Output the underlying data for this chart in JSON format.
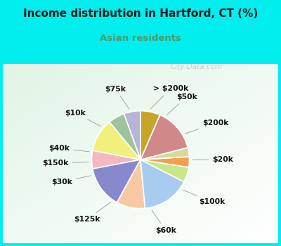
{
  "title": "Income distribution in Hartford, CT (%)",
  "subtitle": "Asian residents",
  "title_color": "#1a1a1a",
  "subtitle_color": "#4a9a6a",
  "title_bg_color": "#00EEEE",
  "chart_bg_color": "#d8efe8",
  "watermark": "City-Data.com",
  "labels": [
    "> $200k",
    "$50k",
    "$200k",
    "$20k",
    "$100k",
    "$60k",
    "$125k",
    "$30k",
    "$150k",
    "$40k",
    "$10k",
    "$75k"
  ],
  "sizes": [
    5.5,
    5.5,
    11.0,
    6.0,
    14.0,
    9.5,
    16.0,
    5.0,
    3.5,
    3.0,
    14.5,
    6.5
  ],
  "colors": [
    "#b8b4d8",
    "#9ec49e",
    "#f0f07a",
    "#f4b8c0",
    "#8888cc",
    "#f8c8a4",
    "#a8ccf0",
    "#c8e888",
    "#f0a050",
    "#d8d898",
    "#d08888",
    "#c8a428"
  ],
  "startangle": 90,
  "label_fontsize": 7.8,
  "label_color": "#111111"
}
